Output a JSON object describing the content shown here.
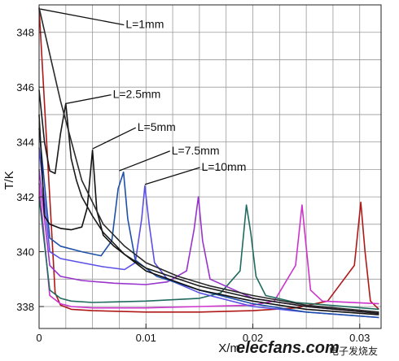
{
  "chart_data": {
    "type": "line",
    "title": "",
    "xlabel": "X/m",
    "ylabel": "T/K",
    "xlim": [
      0,
      0.032
    ],
    "ylim": [
      337.2,
      349
    ],
    "xticks": [
      0,
      0.01,
      0.02,
      0.03
    ],
    "xtick_labels": [
      "0",
      "0.01",
      "0.02",
      "0.03"
    ],
    "yticks": [
      338,
      340,
      342,
      344,
      346,
      348
    ],
    "ytick_labels": [
      "338",
      "340",
      "342",
      "344",
      "346",
      "348"
    ],
    "grid": true,
    "series": [
      {
        "color": "#b01818",
        "x": [
          0,
          0.0015,
          0.002,
          0.003,
          0.005,
          0.01,
          0.015,
          0.02,
          0.024,
          0.027,
          0.0295,
          0.0301,
          0.0305,
          0.031,
          0.0318
        ],
        "y": [
          348.9,
          338.5,
          338.05,
          337.9,
          337.85,
          337.8,
          337.8,
          337.85,
          337.95,
          338.2,
          339.5,
          341.8,
          340.0,
          338.2,
          337.9
        ]
      },
      {
        "color": "#cc33cc",
        "x": [
          0,
          0.001,
          0.002,
          0.003,
          0.005,
          0.01,
          0.015,
          0.02,
          0.022,
          0.024,
          0.0246,
          0.0254,
          0.0265,
          0.0318
        ],
        "y": [
          342.5,
          338.4,
          338.1,
          338.0,
          337.95,
          337.95,
          338.0,
          338.05,
          338.2,
          339.5,
          341.7,
          338.6,
          338.2,
          338.1
        ]
      },
      {
        "color": "#1f6b5e",
        "x": [
          0,
          0.001,
          0.002,
          0.003,
          0.005,
          0.01,
          0.015,
          0.017,
          0.0188,
          0.0194,
          0.0198,
          0.0203,
          0.0212,
          0.024,
          0.0318
        ],
        "y": [
          342.0,
          338.6,
          338.3,
          338.2,
          338.15,
          338.2,
          338.3,
          338.5,
          339.3,
          341.7,
          340.7,
          339.1,
          338.4,
          338.15,
          337.9
        ]
      },
      {
        "color": "#9933cc",
        "x": [
          0,
          0.001,
          0.002,
          0.004,
          0.007,
          0.01,
          0.012,
          0.0138,
          0.0145,
          0.0149,
          0.0153,
          0.016,
          0.02,
          0.025,
          0.0318
        ],
        "y": [
          343.0,
          339.5,
          339.1,
          338.95,
          338.85,
          338.8,
          338.9,
          339.3,
          340.8,
          342.0,
          340.4,
          339.0,
          338.3,
          338.0,
          337.75
        ]
      },
      {
        "color": "#5a50e6",
        "x": [
          0,
          0.001,
          0.002,
          0.004,
          0.006,
          0.008,
          0.009,
          0.0096,
          0.0099,
          0.0103,
          0.0108,
          0.012,
          0.015,
          0.02,
          0.025,
          0.0318
        ],
        "y": [
          343.8,
          340.0,
          339.75,
          339.6,
          339.45,
          339.35,
          339.6,
          341.2,
          342.4,
          341.0,
          339.6,
          339.0,
          338.5,
          338.0,
          337.8,
          337.6
        ]
      },
      {
        "color": "#1e50aa",
        "x": [
          0,
          0.001,
          0.002,
          0.004,
          0.0058,
          0.0068,
          0.0074,
          0.0079,
          0.0083,
          0.009,
          0.011,
          0.015,
          0.02,
          0.025,
          0.0318
        ],
        "y": [
          344.5,
          340.5,
          340.2,
          340.0,
          339.85,
          340.4,
          342.3,
          342.9,
          341.2,
          339.7,
          339.1,
          338.6,
          338.1,
          337.8,
          337.6
        ]
      },
      {
        "color": "#111111",
        "x": [
          0,
          0.0005,
          0.001,
          0.002,
          0.003,
          0.004,
          0.0045,
          0.005,
          0.0054,
          0.006,
          0.007,
          0.01,
          0.015,
          0.02,
          0.025,
          0.0318
        ],
        "y": [
          345.0,
          341.3,
          341.0,
          340.85,
          340.8,
          340.9,
          341.6,
          343.7,
          341.5,
          340.6,
          340.2,
          339.3,
          338.6,
          338.2,
          337.9,
          337.7
        ]
      },
      {
        "color": "#1a1a1a",
        "x": [
          0,
          0.0005,
          0.001,
          0.0015,
          0.002,
          0.0025,
          0.003,
          0.0035,
          0.004,
          0.005,
          0.006,
          0.008,
          0.01,
          0.015,
          0.02,
          0.025,
          0.0318
        ],
        "y": [
          345.9,
          344.0,
          342.95,
          342.85,
          344.3,
          345.4,
          343.4,
          342.6,
          342.0,
          341.3,
          340.7,
          339.9,
          339.4,
          338.75,
          338.3,
          338.0,
          337.75
        ]
      },
      {
        "color": "#2a2a2a",
        "x": [
          0,
          0.002,
          0.004,
          0.006,
          0.008,
          0.01,
          0.013,
          0.016,
          0.02,
          0.025,
          0.0318
        ],
        "y": [
          348.9,
          345.5,
          342.6,
          341.0,
          340.2,
          339.6,
          339.1,
          338.75,
          338.4,
          338.05,
          337.8
        ]
      }
    ],
    "annotations": [
      {
        "text": "L=1mm",
        "x": 0.0081,
        "y": 348.3,
        "arrow_to": [
          0.0001,
          348.85
        ]
      },
      {
        "text": "L=2.5mm",
        "x": 0.0069,
        "y": 345.75,
        "arrow_to": [
          0.0025,
          345.4
        ]
      },
      {
        "text": "L=5mm",
        "x": 0.0092,
        "y": 344.55,
        "arrow_to": [
          0.005,
          343.75
        ]
      },
      {
        "text": "L=7.5mm",
        "x": 0.0124,
        "y": 343.7,
        "arrow_to": [
          0.0075,
          342.95
        ]
      },
      {
        "text": "L=10mm",
        "x": 0.0152,
        "y": 343.1,
        "arrow_to": [
          0.0099,
          342.45
        ]
      }
    ],
    "watermark": {
      "text": "elecfans.com",
      "subtext": "电子发烧友"
    }
  }
}
